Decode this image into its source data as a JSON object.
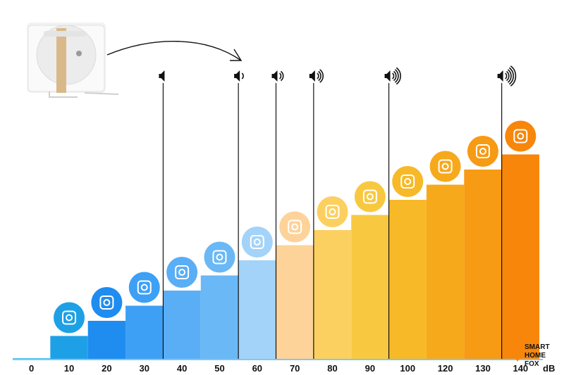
{
  "chart_data": {
    "type": "bar",
    "categories": [
      "0",
      "10",
      "20",
      "30",
      "40",
      "50",
      "60",
      "70",
      "80",
      "90",
      "100",
      "120",
      "130",
      "140"
    ],
    "values": [
      0,
      10,
      20,
      30,
      40,
      50,
      60,
      70,
      80,
      90,
      100,
      120,
      130,
      140
    ],
    "unit": "dB",
    "bar_colors": [
      "#4fc3f7",
      "#1ea0e6",
      "#1f8cf0",
      "#3da0f5",
      "#5aaef5",
      "#6ab8f6",
      "#a3d3f8",
      "#fdd39a",
      "#fcd060",
      "#f8c940",
      "#f7b928",
      "#f7a91c",
      "#f79a14",
      "#f7860a"
    ],
    "icons": [
      "",
      "lungs-icon",
      "leaves-icon",
      "whisper-icon",
      "fridge-icon",
      "rain-cloud-icon",
      "speech-bubbles-icon",
      "washing-machine-icon",
      "piano-icon",
      "hair-dryer-icon",
      "coffee-machine-icon",
      "trombone-icon",
      "police-car-icon",
      "fireworks-icon"
    ],
    "speaker_markers": [
      {
        "at": "40",
        "waves": 0
      },
      {
        "at": "60",
        "waves": 1
      },
      {
        "at": "70",
        "waves": 2
      },
      {
        "at": "80",
        "waves": 3
      },
      {
        "at": "100",
        "waves": 4
      },
      {
        "at": "140",
        "waves": 5
      }
    ]
  },
  "brand": {
    "line1": "SMART",
    "line2": "HOME",
    "line3": "FOX"
  },
  "colors": {
    "accent_blue": "#1f8cf0",
    "accent_orange": "#f7860a",
    "marker_line": "#111111"
  }
}
